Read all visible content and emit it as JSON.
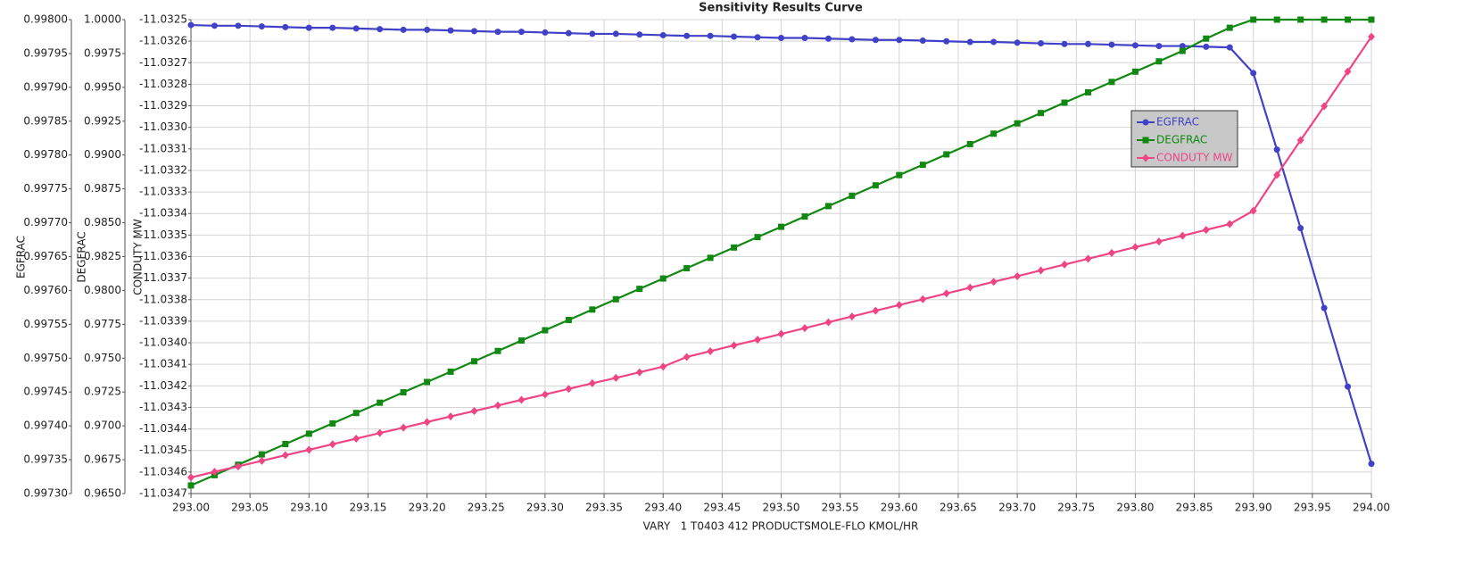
{
  "chart_data": {
    "type": "line",
    "title": "Sensitivity Results Curve",
    "xlabel": "VARY   1 T0403 412 PRODUCTSMOLE-FLO KMOL/HR",
    "ylabel": "EGFRAC",
    "y2label": "DEGFRAC",
    "y3label": "CONDUTY MW",
    "grid": true,
    "xlim": [
      293,
      294
    ],
    "xticks": [
      {
        "value": 293,
        "label": "293.00"
      },
      293.05,
      {
        "value": 293.1,
        "label": "293.10"
      },
      293.15,
      {
        "value": 293.2,
        "label": "293.20"
      },
      293.25,
      {
        "value": 293.3,
        "label": "293.30"
      },
      293.35,
      {
        "value": 293.4,
        "label": "293.40"
      },
      293.45,
      {
        "value": 293.5,
        "label": "293.50"
      },
      293.55,
      {
        "value": 293.6,
        "label": "293.60"
      },
      293.65,
      {
        "value": 293.7,
        "label": "293.70"
      },
      293.75,
      {
        "value": 293.8,
        "label": "293.80"
      },
      293.85,
      {
        "value": 293.9,
        "label": "293.90"
      },
      293.95,
      {
        "value": 294,
        "label": "294.00"
      }
    ],
    "ylim": [
      0.9973,
      0.998
    ],
    "yticks": [
      {
        "value": 0.9973,
        "label": "0.99730"
      },
      0.99735,
      {
        "value": 0.9974,
        "label": "0.99740"
      },
      0.99745,
      {
        "value": 0.9975,
        "label": "0.99750"
      },
      0.99755,
      {
        "value": 0.9976,
        "label": "0.99760"
      },
      0.99765,
      {
        "value": 0.9977,
        "label": "0.99770"
      },
      0.99775,
      {
        "value": 0.9978,
        "label": "0.99780"
      },
      0.99785,
      {
        "value": 0.9979,
        "label": "0.99790"
      },
      0.99795,
      {
        "value": 0.998,
        "label": "0.99800"
      }
    ],
    "y2lim": [
      0.965,
      1
    ],
    "y2ticks": [
      {
        "value": 0.965,
        "label": "0.9650"
      },
      0.9675,
      {
        "value": 0.97,
        "label": "0.9700"
      },
      0.9725,
      {
        "value": 0.975,
        "label": "0.9750"
      },
      0.9775,
      {
        "value": 0.98,
        "label": "0.9800"
      },
      0.9825,
      {
        "value": 0.985,
        "label": "0.9850"
      },
      0.9875,
      {
        "value": 0.99,
        "label": "0.9900"
      },
      0.9925,
      {
        "value": 0.995,
        "label": "0.9950"
      },
      0.9975,
      {
        "value": 1,
        "label": "1.0000"
      }
    ],
    "y3lim": [
      -11.0347,
      -11.0325
    ],
    "y3ticks": [
      -11.0347,
      -11.0346,
      -11.0345,
      -11.0344,
      -11.0343,
      -11.0342,
      -11.0341,
      {
        "value": -11.034,
        "label": "-11.0340"
      },
      -11.0339,
      -11.0338,
      -11.0337,
      -11.0336,
      -11.0335,
      -11.0334,
      -11.0333,
      -11.0332,
      -11.0331,
      {
        "value": -11.033,
        "label": "-11.0330"
      },
      -11.0329,
      -11.0328,
      -11.0327,
      -11.0326,
      -11.0325
    ],
    "x": [
      293,
      293.02,
      293.04,
      293.06,
      293.08,
      293.1,
      293.12,
      293.14,
      293.16,
      293.18,
      293.2,
      293.22,
      293.24,
      293.26,
      293.28,
      293.3,
      293.32,
      293.34,
      293.36,
      293.38,
      293.4,
      293.42,
      293.44,
      293.46,
      293.48,
      293.5,
      293.52,
      293.54,
      293.56,
      293.58,
      293.6,
      293.62,
      293.64,
      293.66,
      293.68,
      293.7,
      293.72,
      293.74,
      293.76,
      293.78,
      293.8,
      293.82,
      293.84,
      293.86,
      293.88,
      293.9,
      293.92,
      293.94,
      293.96,
      293.98,
      294
    ],
    "series": [
      {
        "name": "EGFRAC",
        "color": "#4141c8",
        "marker": "circle",
        "axis": "y",
        "values": [
          0.997992,
          0.997991,
          0.997991,
          0.99799,
          0.997989,
          0.997988,
          0.997988,
          0.997987,
          0.997986,
          0.997985,
          0.997985,
          0.997984,
          0.997983,
          0.997982,
          0.997982,
          0.997981,
          0.99798,
          0.997979,
          0.997979,
          0.997978,
          0.997977,
          0.997976,
          0.997976,
          0.997975,
          0.997974,
          0.997973,
          0.997973,
          0.997972,
          0.997971,
          0.99797,
          0.99797,
          0.997969,
          0.997968,
          0.997967,
          0.997967,
          0.997966,
          0.997965,
          0.997964,
          0.997964,
          0.997963,
          0.997962,
          0.997961,
          0.997961,
          0.99796,
          0.997959,
          0.997921,
          0.997808,
          0.997692,
          0.997574,
          0.997458,
          0.997344
        ]
      },
      {
        "name": "DEGFRAC",
        "color": "#118811",
        "marker": "square",
        "axis": "y2",
        "values": [
          0.9656,
          0.96636,
          0.96713,
          0.96789,
          0.96866,
          0.96942,
          0.97018,
          0.97095,
          0.97171,
          0.97248,
          0.97324,
          0.974,
          0.97477,
          0.97553,
          0.9763,
          0.97706,
          0.97782,
          0.97859,
          0.97935,
          0.98012,
          0.98088,
          0.98164,
          0.98241,
          0.98317,
          0.98394,
          0.9847,
          0.98546,
          0.98623,
          0.98699,
          0.98776,
          0.98852,
          0.98928,
          0.99005,
          0.99081,
          0.99158,
          0.99234,
          0.9931,
          0.99387,
          0.99463,
          0.9954,
          0.99616,
          0.99692,
          0.99769,
          0.9986,
          0.9994,
          1,
          1,
          1,
          1,
          1,
          1
        ]
      },
      {
        "name": "CONDUTY MW",
        "color": "#f04585",
        "marker": "diamond",
        "axis": "y3",
        "values": [
          -11.034625,
          -11.034599,
          -11.034574,
          -11.034548,
          -11.034522,
          -11.034497,
          -11.034471,
          -11.034445,
          -11.034419,
          -11.034394,
          -11.034368,
          -11.034342,
          -11.034317,
          -11.034291,
          -11.034265,
          -11.03424,
          -11.034214,
          -11.034188,
          -11.034163,
          -11.034137,
          -11.034111,
          -11.034066,
          -11.034039,
          -11.034012,
          -11.033986,
          -11.033959,
          -11.033932,
          -11.033905,
          -11.033878,
          -11.033851,
          -11.033825,
          -11.033798,
          -11.033771,
          -11.033744,
          -11.033717,
          -11.033691,
          -11.033664,
          -11.033637,
          -11.03361,
          -11.033583,
          -11.033556,
          -11.03353,
          -11.033503,
          -11.033476,
          -11.033449,
          -11.033387,
          -11.033221,
          -11.03306,
          -11.032902,
          -11.032741,
          -11.032579
        ]
      }
    ]
  }
}
